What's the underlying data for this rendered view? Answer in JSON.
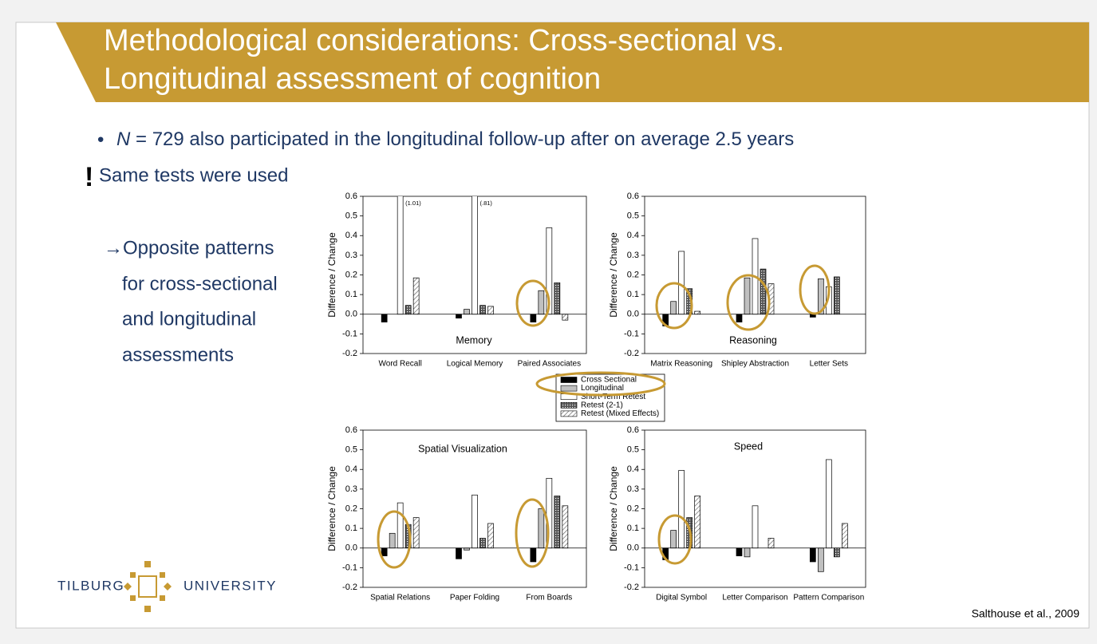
{
  "title_lines": [
    "Methodological considerations: Cross-sectional vs.",
    "Longitudinal assessment of cognition"
  ],
  "bullet": {
    "italic": "N",
    "text": " = 729 also participated in the longitudinal follow-up after on average 2.5 years"
  },
  "exclaim": {
    "mark": "!",
    "text": "Same tests were used"
  },
  "arrow_lines": [
    "→Opposite patterns",
    "for cross-sectional",
    "and longitudinal",
    "assessments"
  ],
  "logo": {
    "left": "Tilburg",
    "right": "University"
  },
  "citation": "Salthouse et al., 2009",
  "legend": [
    {
      "name": "Cross Sectional",
      "color": "#000000"
    },
    {
      "name": "Longitudinal",
      "color": "#c0c0c0"
    },
    {
      "name": "Short-Term Retest",
      "color": "#ffffff"
    },
    {
      "name": "Retest (2-1)",
      "color": "#666666",
      "pattern": "crosshatch"
    },
    {
      "name": "Retest (Mixed Effects)",
      "color": "#ffffff",
      "pattern": "hatch"
    }
  ],
  "chart_data": [
    {
      "type": "bar",
      "title": "Memory",
      "ylabel": "Difference / Change",
      "categories": [
        "Word Recall",
        "Logical Memory",
        "Paired Associates"
      ],
      "series": [
        {
          "values": [
            -0.04,
            -0.02,
            -0.04
          ]
        },
        {
          "values": [
            0.0,
            0.025,
            0.12
          ]
        },
        {
          "values": [
            1.01,
            0.81,
            0.44
          ],
          "value_labels": [
            "(1.01)",
            "(.81)",
            null
          ]
        },
        {
          "values": [
            0.045,
            0.045,
            0.16
          ]
        },
        {
          "values": [
            0.185,
            0.04,
            -0.03
          ]
        }
      ],
      "ylim": [
        -0.2,
        0.6
      ],
      "yticks": [
        -0.2,
        -0.1,
        {
          "value": 0,
          "label": "0.0"
        },
        0.1,
        0.2,
        0.3,
        0.4,
        0.5,
        0.6
      ]
    },
    {
      "type": "bar",
      "title": "Reasoning",
      "ylabel": "Difference / Change",
      "categories": [
        "Matrix Reasoning",
        "Shipley Abstraction",
        "Letter Sets"
      ],
      "series": [
        {
          "values": [
            -0.06,
            -0.04,
            -0.015
          ]
        },
        {
          "values": [
            0.065,
            0.185,
            0.18
          ]
        },
        {
          "values": [
            0.32,
            0.385,
            0.14
          ]
        },
        {
          "values": [
            0.13,
            0.23,
            0.19
          ]
        },
        {
          "values": [
            0.015,
            0.155,
            null
          ]
        }
      ],
      "ylim": [
        -0.2,
        0.6
      ],
      "yticks": [
        -0.2,
        -0.1,
        {
          "value": 0,
          "label": "0.0"
        },
        0.1,
        0.2,
        0.3,
        0.4,
        0.5,
        0.6
      ]
    },
    {
      "type": "bar",
      "title": "Spatial Visualization",
      "ylabel": "Difference / Change",
      "categories": [
        "Spatial Relations",
        "Paper Folding",
        "From Boards"
      ],
      "series": [
        {
          "values": [
            -0.04,
            -0.055,
            -0.07
          ]
        },
        {
          "values": [
            0.075,
            -0.01,
            0.2
          ]
        },
        {
          "values": [
            0.23,
            0.27,
            0.355
          ]
        },
        {
          "values": [
            0.12,
            0.05,
            0.265
          ]
        },
        {
          "values": [
            0.155,
            0.125,
            0.215
          ]
        }
      ],
      "ylim": [
        -0.2,
        0.6
      ],
      "yticks": [
        -0.2,
        -0.1,
        {
          "value": 0,
          "label": "0.0"
        },
        0.1,
        0.2,
        0.3,
        0.4,
        0.5,
        0.6
      ]
    },
    {
      "type": "bar",
      "title": "Speed",
      "ylabel": "Difference / Change",
      "categories": [
        "Digital Symbol",
        "Letter Comparison",
        "Pattern Comparison"
      ],
      "series": [
        {
          "values": [
            -0.06,
            -0.04,
            -0.07
          ]
        },
        {
          "values": [
            0.09,
            -0.045,
            -0.12
          ]
        },
        {
          "values": [
            0.395,
            0.215,
            0.45
          ]
        },
        {
          "values": [
            0.155,
            null,
            -0.045
          ]
        },
        {
          "values": [
            0.265,
            0.05,
            0.125
          ]
        }
      ],
      "ylim": [
        -0.2,
        0.6
      ],
      "yticks": [
        -0.2,
        -0.1,
        {
          "value": 0,
          "label": "0.0"
        },
        0.1,
        0.2,
        0.3,
        0.4,
        0.5,
        0.6
      ]
    }
  ]
}
